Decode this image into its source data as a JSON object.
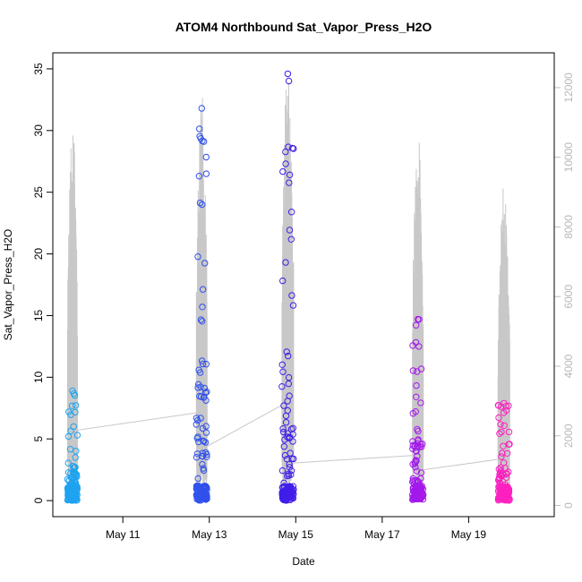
{
  "chart_data": {
    "type": "scatter",
    "title": "ATOM4 Northbound Sat_Vapor_Press_H2O",
    "xlabel": "Date",
    "ylabel": "Sat_Vapor_Press_H2O",
    "x_ticks": [
      "May 11",
      "May 13",
      "May 15",
      "May 17",
      "May 19"
    ],
    "y_ticks": [
      "0",
      "5",
      "10",
      "15",
      "20",
      "25",
      "30",
      "35"
    ],
    "y2_ticks": [
      "0",
      "2000",
      "4000",
      "6000",
      "8000",
      "10000",
      "12000"
    ],
    "xlim_days": [
      9.38,
      20.98
    ],
    "ylim": [
      -1.3,
      36.3
    ],
    "y2lim": [
      -320,
      13000
    ],
    "grid": false,
    "colors": {
      "start": "#1fa3f0",
      "mid": "#3a1fe8",
      "late": "#9a18f0",
      "end": "#ff20c0",
      "secondary_line": "#c8c8c8"
    },
    "primary_points_by_day": [
      {
        "date": "May 10",
        "y_min": 0.0,
        "y_max": 8.9
      },
      {
        "date": "May 12/13",
        "y_min": 0.0,
        "y_max": 31.8
      },
      {
        "date": "May 14/15",
        "y_min": 0.0,
        "y_max": 34.6
      },
      {
        "date": "May 17/18",
        "y_min": 0.0,
        "y_max": 14.7
      },
      {
        "date": "May 19/20",
        "y_min": 0.0,
        "y_max": 7.9
      }
    ],
    "secondary_line_series": [
      {
        "date": "May 10",
        "y_max": 11100
      },
      {
        "date": "May 12/13",
        "y_max": 12000
      },
      {
        "date": "May 14/15",
        "y_max": 12800
      },
      {
        "date": "May 17/18",
        "y_max": 11000
      },
      {
        "date": "May 19/20",
        "y_max": 9300
      }
    ]
  }
}
